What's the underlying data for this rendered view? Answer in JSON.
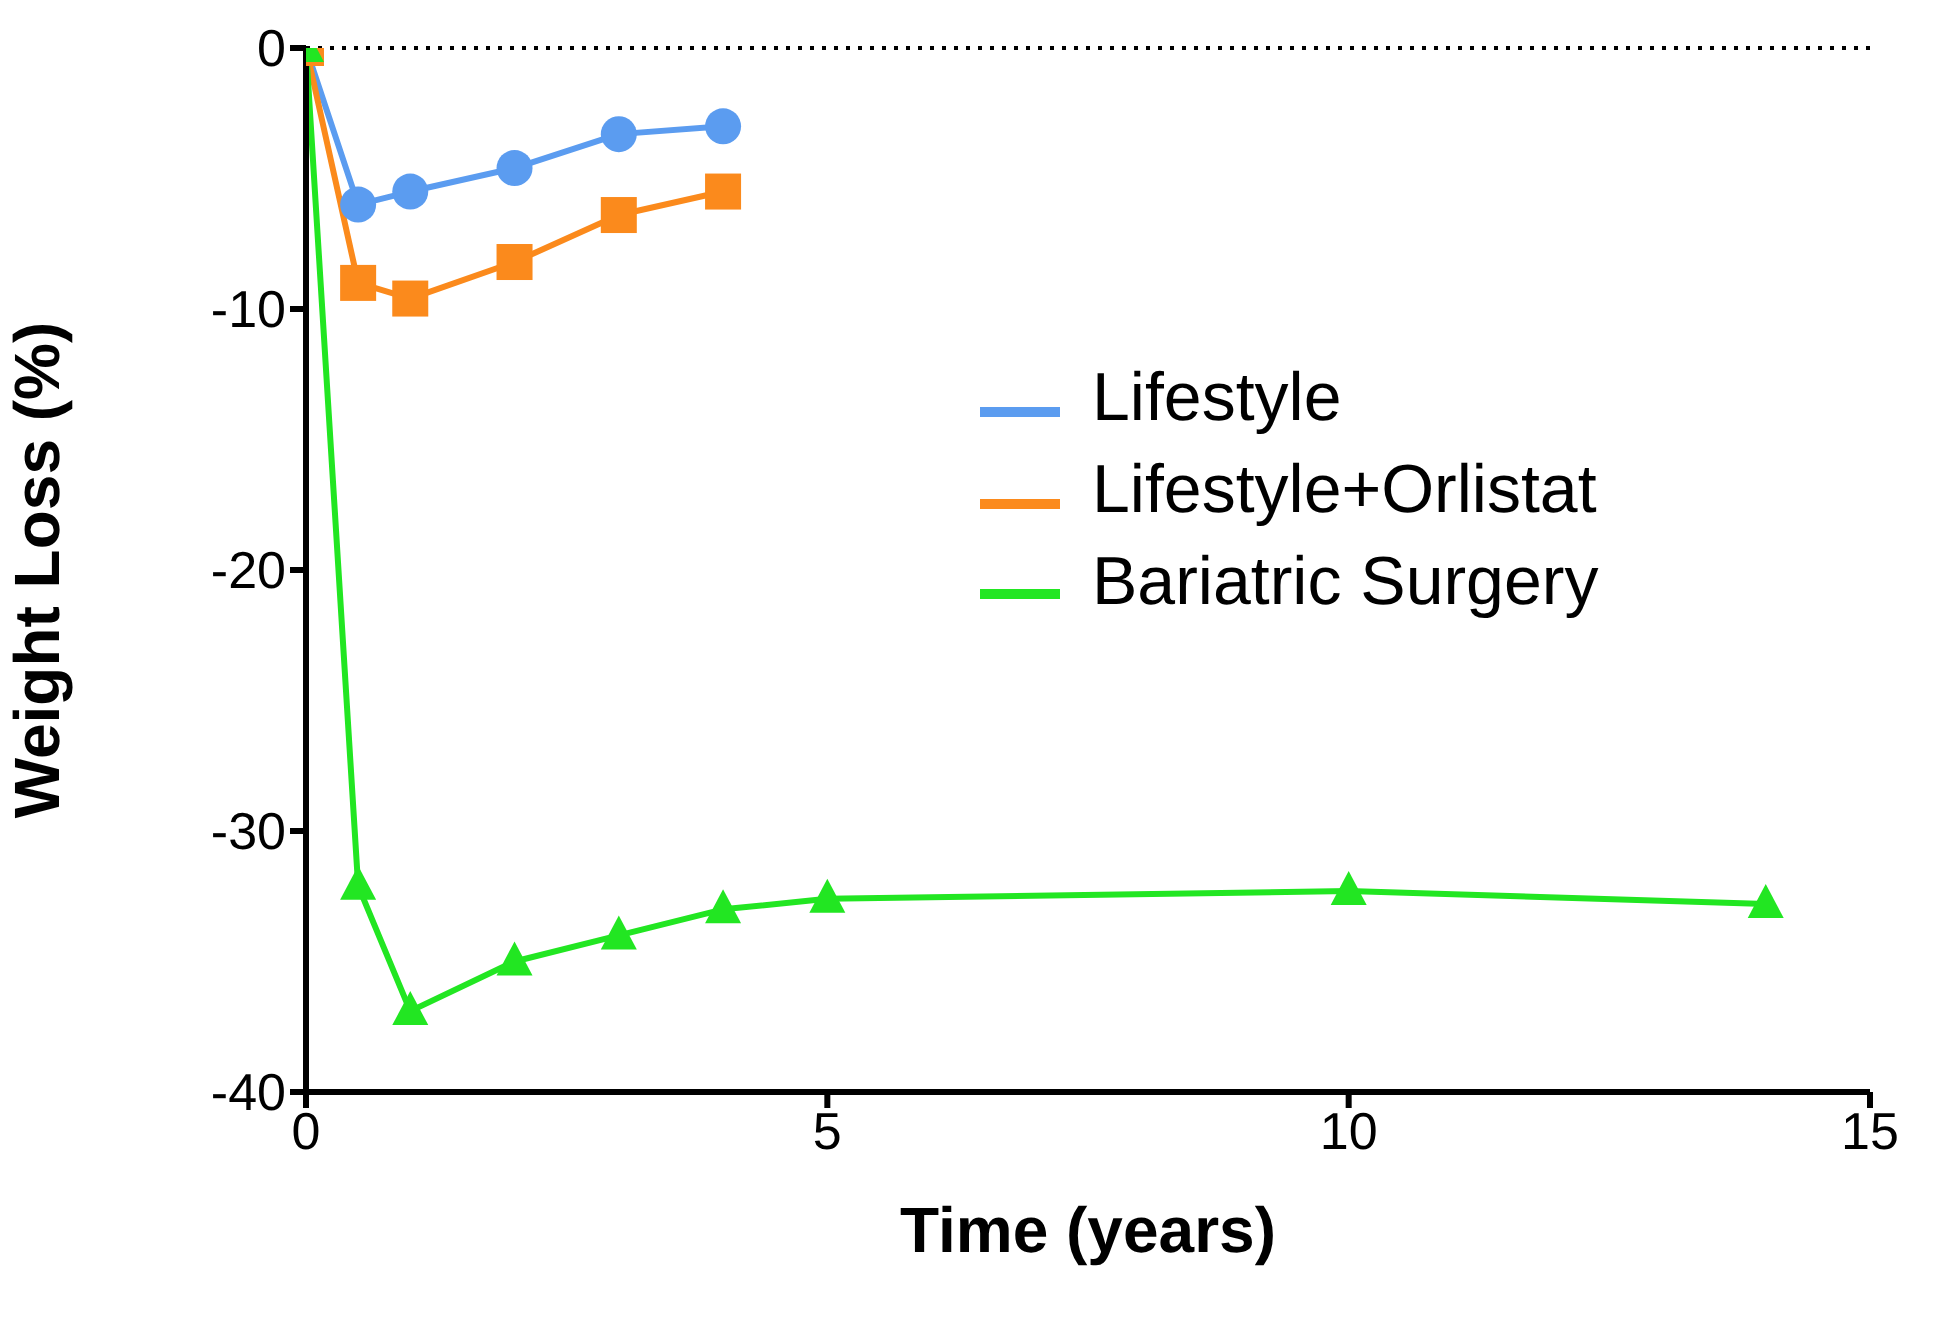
{
  "chart_data": {
    "type": "line",
    "xlabel": "Time (years)",
    "ylabel": "Weight Loss (%)",
    "xlim": [
      0,
      15
    ],
    "xticks": [
      0,
      5,
      10,
      15
    ],
    "ylim": [
      -40,
      0
    ],
    "yticks": [
      -40,
      -30,
      -20,
      -10,
      0
    ],
    "grid": false,
    "legend": "right",
    "line_style": "solid",
    "ref_lines": [
      {
        "axis": "y",
        "value": 0,
        "line_style": "dotted",
        "color": "#000000"
      }
    ],
    "series": [
      {
        "name": "Lifestyle",
        "color": "#5b9cf0",
        "marker": "circle",
        "x": [
          0,
          0.5,
          1,
          2,
          3,
          4
        ],
        "values": [
          0,
          -6,
          -5.5,
          -4.6,
          -3.3,
          -3.0
        ]
      },
      {
        "name": "Lifestyle+Orlistat",
        "color": "#fb8a1c",
        "marker": "square",
        "x": [
          0,
          0.5,
          1,
          2,
          3,
          4
        ],
        "values": [
          0,
          -9.0,
          -9.6,
          -8.2,
          -6.4,
          -5.5
        ]
      },
      {
        "name": "Bariatric Surgery",
        "color": "#22e622",
        "marker": "triangle",
        "x": [
          0,
          0.5,
          1,
          2,
          3,
          4,
          5,
          10,
          14
        ],
        "values": [
          0,
          -32.1,
          -36.9,
          -35.0,
          -34.0,
          -33.0,
          -32.6,
          -32.3,
          -32.8
        ]
      }
    ]
  }
}
